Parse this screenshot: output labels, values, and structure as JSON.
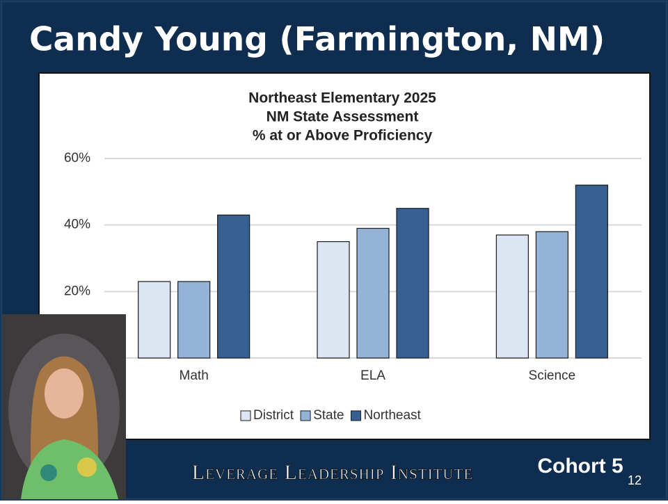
{
  "title": "Candy Young (Farmington, NM)",
  "footer": "Leverage Leadership Institute",
  "cohort": "Cohort 5",
  "page_number": "12",
  "chart_data": {
    "type": "bar",
    "title": [
      "Northeast Elementary 2025",
      "NM State Assessment",
      "% at or Above Proficiency"
    ],
    "categories": [
      "Math",
      "ELA",
      "Science"
    ],
    "series": [
      {
        "name": "District",
        "color": "#dce6f2",
        "values": [
          23,
          35,
          37
        ]
      },
      {
        "name": "State",
        "color": "#95b3d7",
        "values": [
          23,
          39,
          38
        ]
      },
      {
        "name": "Northeast",
        "color": "#376092",
        "values": [
          43,
          45,
          52
        ]
      }
    ],
    "ylim": [
      0,
      60
    ],
    "yticks": [
      {
        "value": 20,
        "label": "20%"
      },
      {
        "value": 40,
        "label": "40%"
      },
      {
        "value": 60,
        "label": "60%"
      }
    ],
    "grid": true,
    "legend": "bottom"
  }
}
